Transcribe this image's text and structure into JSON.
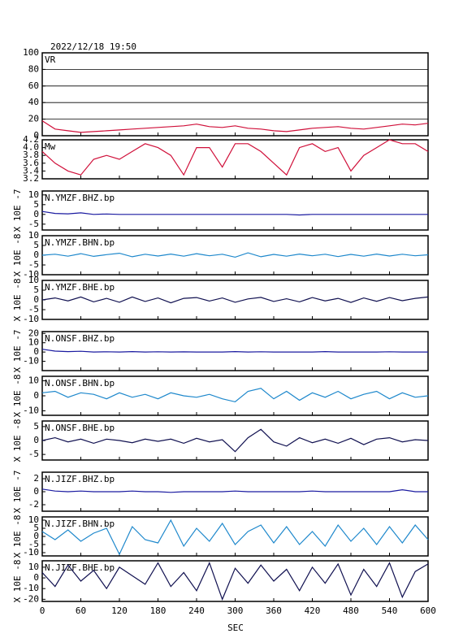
{
  "chart_data": {
    "type": "line",
    "title": "2022/12/18 19:50",
    "xlabel": "SEC",
    "x": [
      0,
      20,
      40,
      60,
      80,
      100,
      120,
      140,
      160,
      180,
      200,
      220,
      240,
      260,
      280,
      300,
      320,
      340,
      360,
      380,
      400,
      420,
      440,
      460,
      480,
      500,
      520,
      540,
      560,
      580,
      600
    ],
    "xlim": [
      0,
      600
    ],
    "xticks": [
      0,
      60,
      120,
      180,
      240,
      300,
      360,
      420,
      480,
      540,
      600
    ],
    "panels": [
      {
        "name": "VR",
        "color": "#d0103a",
        "grid": true,
        "ylim": [
          0,
          100
        ],
        "yticks": [
          0,
          20,
          40,
          60,
          80,
          100
        ],
        "values": [
          18,
          8,
          6,
          4,
          5,
          6,
          7,
          8,
          9,
          10,
          11,
          12,
          14,
          11,
          10,
          12,
          9,
          8,
          6,
          5,
          7,
          9,
          10,
          11,
          9,
          8,
          10,
          12,
          14,
          13,
          15
        ]
      },
      {
        "name": "Mw",
        "color": "#d0103a",
        "ylim": [
          3.2,
          4.2
        ],
        "yticks": [
          3.2,
          3.4,
          3.6,
          3.8,
          {
            "value": 4,
            "label": "4.0"
          },
          4.2
        ],
        "values": [
          3.9,
          3.6,
          3.4,
          3.3,
          3.7,
          3.8,
          3.7,
          3.9,
          4.1,
          4.0,
          3.8,
          3.3,
          4.0,
          4.0,
          3.5,
          4.1,
          4.1,
          3.9,
          3.6,
          3.3,
          4.0,
          4.1,
          3.9,
          4.0,
          3.4,
          3.8,
          4.0,
          4.2,
          4.1,
          4.1,
          3.9
        ]
      },
      {
        "name": "N.YMZF.BHZ.bp",
        "ylabel": "X 10E -7",
        "color": "#1a1aa0",
        "ylim": [
          -8,
          12
        ],
        "yticks": [
          10,
          5,
          0,
          -5
        ],
        "values": [
          1.5,
          0.5,
          0.3,
          0.8,
          0,
          0.2,
          0,
          0,
          0,
          0,
          0,
          0,
          0,
          0,
          0,
          0,
          0,
          0,
          0,
          0,
          -0.3,
          0,
          0,
          0,
          0,
          0,
          0,
          0,
          0,
          0,
          0
        ]
      },
      {
        "name": "N.YMZF.BHN.bp",
        "ylabel": "X 10E -8",
        "color": "#1e88cc",
        "ylim": [
          -10,
          10
        ],
        "yticks": [
          10,
          5,
          0,
          -5,
          -10
        ],
        "values": [
          0,
          0.5,
          -0.5,
          0.8,
          -0.6,
          0.3,
          1,
          -0.8,
          0.5,
          -0.4,
          0.6,
          -0.5,
          0.8,
          -0.3,
          0.5,
          -1,
          1.2,
          -0.8,
          0.4,
          -0.5,
          0.6,
          -0.3,
          0.5,
          -0.7,
          0.4,
          -0.5,
          0.6,
          -0.4,
          0.5,
          -0.3,
          0.2
        ]
      },
      {
        "name": "N.YMZF.BHE.bp",
        "ylabel": "X 10E -8",
        "color": "#101050",
        "ylim": [
          -10,
          10
        ],
        "yticks": [
          10,
          5,
          0,
          -5,
          -10
        ],
        "values": [
          0,
          1,
          -0.5,
          1.5,
          -1,
          0.8,
          -1.2,
          1.5,
          -0.8,
          1,
          -1.5,
          0.8,
          1.2,
          -0.6,
          1,
          -1.2,
          0.5,
          1.3,
          -0.8,
          0.6,
          -1,
          1.2,
          -0.5,
          0.8,
          -1.3,
          1,
          -0.7,
          1.2,
          -0.4,
          0.8,
          1.5
        ]
      },
      {
        "name": "N.ONSF.BHZ.bp",
        "ylabel": "X 10E -7",
        "color": "#1a1aa0",
        "ylim": [
          -20,
          22
        ],
        "yticks": [
          20,
          10,
          0,
          -10
        ],
        "values": [
          3,
          1,
          0.5,
          0.8,
          0,
          0.3,
          0,
          0.5,
          0,
          0.3,
          0,
          0.2,
          0,
          0,
          0,
          0.5,
          0,
          0.3,
          0,
          0,
          0,
          0,
          0.5,
          0,
          0,
          0,
          0,
          0.3,
          0,
          0,
          0
        ]
      },
      {
        "name": "N.ONSF.BHN.bp",
        "ylabel": "X 10E -8",
        "color": "#1e88cc",
        "ylim": [
          -13,
          13
        ],
        "yticks": [
          10,
          0,
          -10
        ],
        "values": [
          2,
          3,
          -1,
          2,
          1,
          -2,
          2,
          -1,
          1,
          -2,
          2,
          0,
          -1,
          1,
          -2,
          -4,
          3,
          5,
          -2,
          3,
          -3,
          2,
          -1,
          3,
          -2,
          1,
          3,
          -2,
          2,
          -1,
          0
        ]
      },
      {
        "name": "N.ONSF.BHE.bp",
        "ylabel": "X 10E -8",
        "color": "#101050",
        "ylim": [
          -7,
          7
        ],
        "yticks": [
          5,
          0,
          -5
        ],
        "values": [
          0,
          1,
          -0.5,
          0.5,
          -1,
          0.5,
          0,
          -0.8,
          0.5,
          -0.3,
          0.5,
          -1,
          0.8,
          -0.5,
          0.3,
          -4,
          1,
          4,
          -0.5,
          -2,
          1,
          -0.8,
          0.5,
          -1,
          0.8,
          -1.5,
          0.5,
          1,
          -0.5,
          0.3,
          0
        ]
      },
      {
        "name": "N.JIZF.BHZ.bp",
        "ylabel": "X 10E -7",
        "color": "#1a1aa0",
        "ylim": [
          -3,
          3
        ],
        "yticks": [
          2,
          0,
          -2
        ],
        "values": [
          0.4,
          0.1,
          0,
          0.1,
          0,
          0,
          0,
          0.1,
          0,
          0,
          -0.1,
          0,
          0,
          0,
          0,
          0.1,
          0,
          0,
          0,
          0,
          0,
          0.1,
          0,
          0,
          0,
          0,
          0,
          0,
          0.3,
          0,
          0
        ]
      },
      {
        "name": "N.JIZF.BHN.bp",
        "ylabel": "X 10E -8",
        "color": "#1e88cc",
        "ylim": [
          -12,
          12
        ],
        "yticks": [
          10,
          5,
          0,
          -5,
          -10
        ],
        "values": [
          3,
          -2,
          4,
          -3,
          2,
          5,
          -11,
          6,
          -2,
          -4,
          10,
          -6,
          5,
          -3,
          8,
          -5,
          3,
          7,
          -4,
          6,
          -5,
          3,
          -6,
          7,
          -3,
          5,
          -5,
          6,
          -4,
          7,
          -2
        ]
      },
      {
        "name": "N.JIZF.BHE.bp",
        "ylabel": "X 10E -8",
        "color": "#101050",
        "ylim": [
          -22,
          16
        ],
        "yticks": [
          10,
          0,
          -10,
          -20
        ],
        "values": [
          5,
          -8,
          12,
          -3,
          7,
          -10,
          10,
          2,
          -6,
          14,
          -8,
          5,
          -12,
          14,
          -20,
          9,
          -5,
          12,
          -3,
          8,
          -12,
          10,
          -5,
          13,
          -16,
          8,
          -8,
          14,
          -18,
          6,
          13
        ]
      }
    ]
  }
}
